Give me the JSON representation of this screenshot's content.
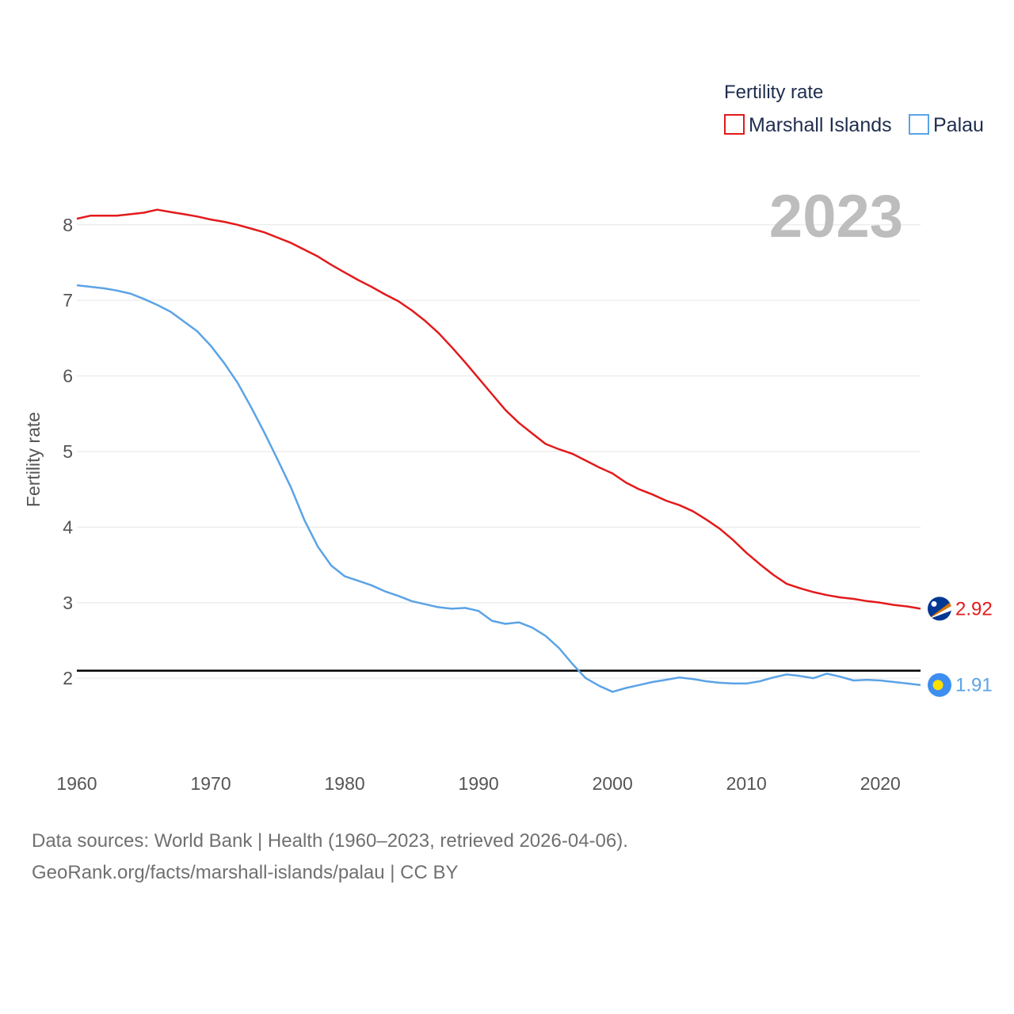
{
  "chart_data": {
    "type": "line",
    "legend_title": "Fertility rate",
    "ylabel": "Fertility rate",
    "year_display": "2023",
    "xlim": [
      1960,
      2023
    ],
    "ylim": [
      1.1,
      8.7
    ],
    "x_ticks": [
      1960,
      1970,
      1980,
      1990,
      2000,
      2010,
      2020
    ],
    "y_ticks": [
      2,
      3,
      4,
      5,
      6,
      7,
      8
    ],
    "reference_line": 2.1,
    "grid": true,
    "legend_position": "top-right",
    "x": [
      1960,
      1961,
      1962,
      1963,
      1964,
      1965,
      1966,
      1967,
      1968,
      1969,
      1970,
      1971,
      1972,
      1973,
      1974,
      1975,
      1976,
      1977,
      1978,
      1979,
      1980,
      1981,
      1982,
      1983,
      1984,
      1985,
      1986,
      1987,
      1988,
      1989,
      1990,
      1991,
      1992,
      1993,
      1994,
      1995,
      1996,
      1997,
      1998,
      1999,
      2000,
      2001,
      2002,
      2003,
      2004,
      2005,
      2006,
      2007,
      2008,
      2009,
      2010,
      2011,
      2012,
      2013,
      2014,
      2015,
      2016,
      2017,
      2018,
      2019,
      2020,
      2021,
      2022,
      2023
    ],
    "series": [
      {
        "name": "Marshall Islands",
        "color": "#e31a1c",
        "end_label": "2.92",
        "flag_icon": "marshall-islands-flag-icon",
        "values": [
          8.08,
          8.12,
          8.12,
          8.12,
          8.14,
          8.16,
          8.2,
          8.17,
          8.14,
          8.11,
          8.07,
          8.04,
          8.0,
          7.95,
          7.9,
          7.83,
          7.76,
          7.67,
          7.58,
          7.47,
          7.37,
          7.27,
          7.18,
          7.08,
          6.99,
          6.87,
          6.73,
          6.57,
          6.38,
          6.18,
          5.97,
          5.76,
          5.55,
          5.38,
          5.24,
          5.1,
          5.03,
          4.97,
          4.88,
          4.79,
          4.71,
          4.59,
          4.5,
          4.43,
          4.35,
          4.29,
          4.21,
          4.1,
          3.98,
          3.83,
          3.66,
          3.51,
          3.37,
          3.25,
          3.19,
          3.14,
          3.1,
          3.07,
          3.05,
          3.02,
          3.0,
          2.97,
          2.95,
          2.92
        ]
      },
      {
        "name": "Palau",
        "color": "#5ba3e6",
        "end_label": "1.91",
        "flag_icon": "palau-flag-icon",
        "values": [
          7.2,
          7.18,
          7.16,
          7.13,
          7.09,
          7.02,
          6.94,
          6.85,
          6.72,
          6.59,
          6.4,
          6.17,
          5.91,
          5.59,
          5.25,
          4.89,
          4.52,
          4.09,
          3.74,
          3.49,
          3.35,
          3.29,
          3.23,
          3.15,
          3.09,
          3.02,
          2.98,
          2.94,
          2.92,
          2.93,
          2.89,
          2.76,
          2.72,
          2.74,
          2.67,
          2.56,
          2.4,
          2.19,
          2.0,
          1.9,
          1.82,
          1.87,
          1.91,
          1.95,
          1.98,
          2.01,
          1.99,
          1.96,
          1.94,
          1.93,
          1.93,
          1.96,
          2.01,
          2.05,
          2.03,
          2.0,
          2.06,
          2.02,
          1.97,
          1.98,
          1.97,
          1.95,
          1.93,
          1.91
        ]
      }
    ]
  },
  "footer": {
    "line1": "Data sources: World Bank | Health (1960–2023, retrieved 2026-04-06).",
    "line2": "GeoRank.org/facts/marshall-islands/palau | CC BY"
  }
}
